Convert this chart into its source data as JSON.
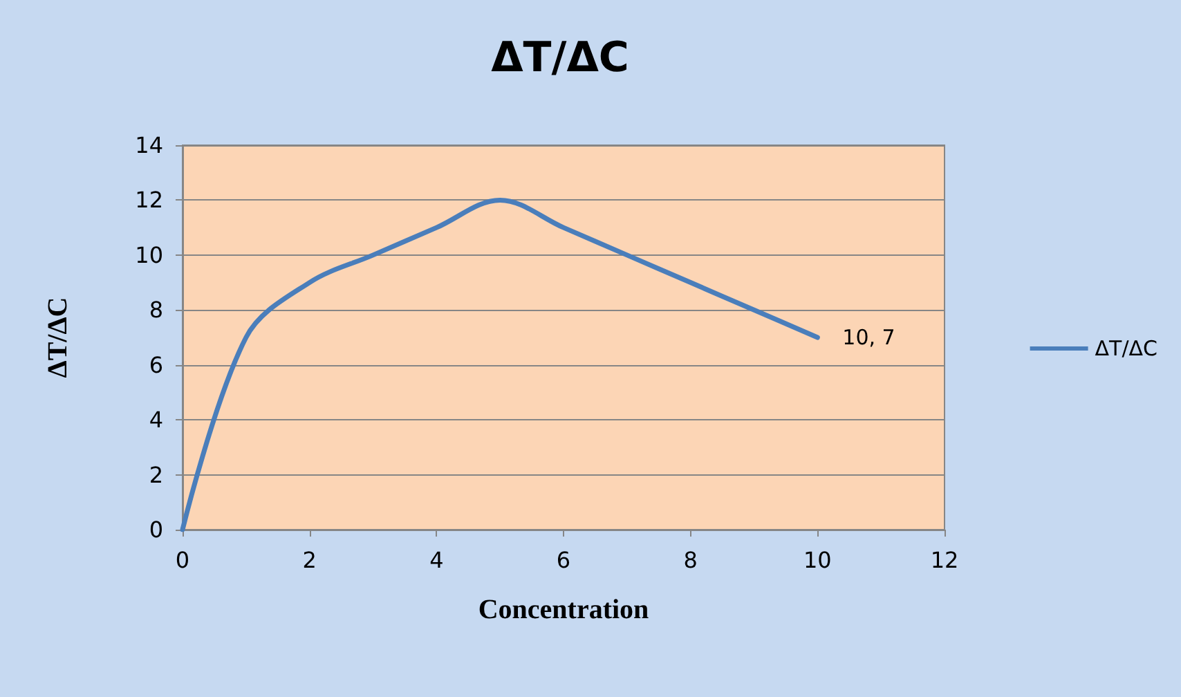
{
  "chart_data": {
    "type": "line",
    "title": "ΔT/ΔC",
    "xlabel": "Concentration",
    "ylabel": "ΔT/ΔC",
    "x": [
      0,
      1,
      2,
      3,
      4,
      5,
      6,
      7,
      8,
      9,
      10
    ],
    "series": [
      {
        "name": "ΔT/ΔC",
        "color": "#4a7ebb",
        "values": [
          0,
          7,
          9,
          10,
          11,
          12,
          11,
          10,
          9,
          8,
          7
        ]
      }
    ],
    "xlim": [
      0,
      12
    ],
    "xticks": [
      0,
      2,
      4,
      6,
      8,
      10,
      12
    ],
    "ylim": [
      0,
      14
    ],
    "yticks": [
      0,
      2,
      4,
      6,
      8,
      10,
      12,
      14
    ],
    "grid": "y",
    "legend": "right",
    "marker": "none",
    "line_style": "solid",
    "annotations": [
      {
        "text": "10, 7",
        "x": 10,
        "y": 7
      }
    ]
  }
}
